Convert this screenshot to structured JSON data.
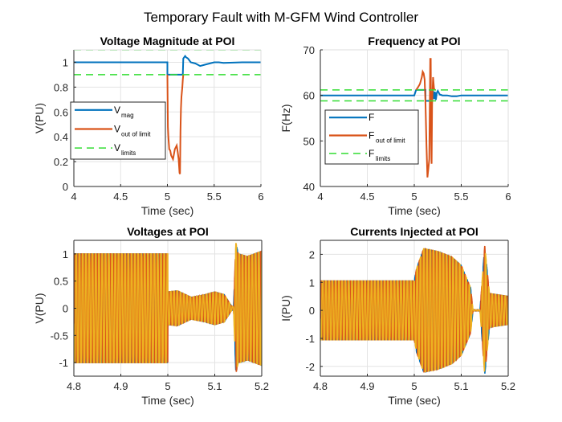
{
  "figure": {
    "title": "Temporary Fault with M-GFM Wind Controller",
    "colors": {
      "blue": "#0072BD",
      "orange": "#D95319",
      "yellow": "#EDB120",
      "green": "#33DD33",
      "grid": "#E3E3E3",
      "axis": "#262626"
    }
  },
  "chart_data": [
    {
      "id": "vmag",
      "type": "line",
      "title": "Voltage Magnitude at POI",
      "xlabel": "Time (sec)",
      "ylabel": "V(PU)",
      "xlim": [
        4,
        6
      ],
      "ylim": [
        0,
        1.1
      ],
      "xticks": [
        4,
        4.5,
        5,
        5.5,
        6
      ],
      "xtick_labels": [
        "4",
        "4.5",
        "5",
        "5.5",
        "6"
      ],
      "yticks": [
        0,
        0.2,
        0.4,
        0.6,
        0.8,
        1
      ],
      "ytick_labels": [
        "0",
        "0.2",
        "0.4",
        "0.6",
        "0.8",
        "1"
      ],
      "grid": true,
      "legend_position": "middle-left",
      "legend": [
        {
          "main": "V",
          "sub": "mag",
          "style": "solid",
          "color": "blue"
        },
        {
          "main": "V",
          "sub": "out of limit",
          "style": "solid",
          "color": "orange"
        },
        {
          "main": "V",
          "sub": "limits",
          "style": "dashed",
          "color": "green"
        }
      ],
      "series": [
        {
          "name": "V_mag",
          "color": "blue",
          "style": "solid",
          "x": [
            4,
            5.0,
            5.0,
            5.16,
            5.165,
            5.17,
            5.19,
            5.2,
            5.22,
            5.25,
            5.3,
            5.35,
            5.4,
            5.45,
            5.5,
            5.55,
            5.6,
            5.8,
            6.0
          ],
          "y": [
            1.0,
            1.0,
            0.9,
            0.9,
            0.9,
            1.03,
            1.05,
            1.04,
            1.03,
            1.0,
            0.99,
            0.97,
            0.98,
            0.99,
            1.0,
            1.0,
            0.995,
            1.0,
            1.0
          ]
        },
        {
          "name": "V_out_of_limit",
          "color": "orange",
          "style": "solid",
          "x": [
            5.0,
            5.005,
            5.01,
            5.02,
            5.03,
            5.04,
            5.06,
            5.08,
            5.1,
            5.11,
            5.12,
            5.13,
            5.135,
            5.14,
            5.145,
            5.15,
            5.16,
            5.165,
            5.17
          ],
          "y": [
            0.9,
            0.48,
            0.4,
            0.3,
            0.29,
            0.25,
            0.22,
            0.3,
            0.33,
            0.28,
            0.22,
            0.11,
            0.1,
            0.45,
            0.63,
            0.72,
            0.8,
            0.86,
            0.9
          ]
        },
        {
          "name": "V_limit_upper",
          "color": "green",
          "style": "dashed",
          "x": [
            4,
            6
          ],
          "y": [
            1.1,
            1.1
          ]
        },
        {
          "name": "V_limit_lower",
          "color": "green",
          "style": "dashed",
          "x": [
            4,
            6
          ],
          "y": [
            0.9,
            0.9
          ]
        }
      ]
    },
    {
      "id": "freq",
      "type": "line",
      "title": "Frequency at POI",
      "xlabel": "Time (sec)",
      "ylabel": "F(Hz)",
      "xlim": [
        4,
        6
      ],
      "ylim": [
        40,
        70
      ],
      "xticks": [
        4,
        4.5,
        5,
        5.5,
        6
      ],
      "xtick_labels": [
        "4",
        "4.5",
        "5",
        "5.5",
        "6"
      ],
      "yticks": [
        40,
        50,
        60,
        70
      ],
      "ytick_labels": [
        "40",
        "50",
        "60",
        "70"
      ],
      "grid": true,
      "legend_position": "middle-left",
      "legend": [
        {
          "main": "F",
          "sub": "",
          "style": "solid",
          "color": "blue"
        },
        {
          "main": "F",
          "sub": "out of limit",
          "style": "solid",
          "color": "orange"
        },
        {
          "main": "F",
          "sub": "limits",
          "style": "dashed",
          "color": "green"
        }
      ],
      "series": [
        {
          "name": "F",
          "color": "blue",
          "style": "solid",
          "x": [
            4,
            5.0,
            5.02,
            5.02,
            5.12,
            5.12,
            5.17,
            5.18,
            5.2,
            5.21,
            5.22,
            5.23,
            5.24,
            5.25,
            5.27,
            5.3,
            5.35,
            5.4,
            5.45,
            5.5,
            6.0
          ],
          "y": [
            60,
            60,
            61.2,
            61.2,
            61.2,
            58.8,
            58.8,
            59.6,
            61.0,
            59.2,
            60.8,
            59.0,
            60.6,
            61.0,
            60.2,
            60.0,
            60.0,
            59.8,
            59.8,
            60.0,
            60.0
          ]
        },
        {
          "name": "F_out_of_limit",
          "color": "orange",
          "style": "solid",
          "x": [
            5.02,
            5.04,
            5.06,
            5.08,
            5.09,
            5.1,
            5.11,
            5.12,
            5.13,
            5.14,
            5.15,
            5.16,
            5.17,
            5.175,
            5.18,
            5.185,
            5.19,
            5.2,
            5.21,
            5.22
          ],
          "y": [
            61.2,
            61.8,
            62.5,
            64.0,
            65.2,
            64.8,
            63.5,
            58.0,
            49.0,
            42.0,
            44.0,
            46.0,
            68.0,
            68.0,
            50.0,
            45.0,
            58.0,
            64.0,
            61.5,
            61.2
          ]
        },
        {
          "name": "F_limit_upper",
          "color": "green",
          "style": "dashed",
          "x": [
            4,
            6
          ],
          "y": [
            61.2,
            61.2
          ]
        },
        {
          "name": "F_limit_lower",
          "color": "green",
          "style": "dashed",
          "x": [
            4,
            6
          ],
          "y": [
            58.8,
            58.8
          ]
        }
      ]
    },
    {
      "id": "voltages",
      "type": "line",
      "title": "Voltages at POI",
      "xlabel": "Time (sec)",
      "ylabel": "V(PU)",
      "xlim": [
        4.8,
        5.2
      ],
      "ylim": [
        -1.25,
        1.25
      ],
      "xticks": [
        4.8,
        4.9,
        5.0,
        5.1,
        5.2
      ],
      "xtick_labels": [
        "4.8",
        "4.9",
        "5",
        "5.1",
        "5.2"
      ],
      "yticks": [
        -1,
        -0.5,
        0,
        0.5,
        1
      ],
      "ytick_labels": [
        "-1",
        "-0.5",
        "0",
        "0.5",
        "1"
      ],
      "grid": true,
      "legend_position": "none",
      "waveform": {
        "frequency_hz": 60,
        "phases": [
          "Va",
          "Vb",
          "Vc"
        ],
        "phase_colors": [
          "blue",
          "orange",
          "yellow"
        ],
        "phase_shift_deg": [
          0,
          -120,
          120
        ],
        "envelope": {
          "t": [
            4.8,
            5.0,
            5.0,
            5.02,
            5.05,
            5.08,
            5.1,
            5.12,
            5.135,
            5.14,
            5.145,
            5.15,
            5.17,
            5.2
          ],
          "amp": [
            1.0,
            1.0,
            0.3,
            0.32,
            0.2,
            0.25,
            0.3,
            0.25,
            0.05,
            0.02,
            1.2,
            1.0,
            0.95,
            1.05
          ]
        }
      }
    },
    {
      "id": "currents",
      "type": "line",
      "title": "Currents Injected at POI",
      "xlabel": "Time (sec)",
      "ylabel": "I(PU)",
      "xlim": [
        4.8,
        5.2
      ],
      "ylim": [
        -2.35,
        2.5
      ],
      "xticks": [
        4.8,
        4.9,
        5.0,
        5.1,
        5.2
      ],
      "xtick_labels": [
        "4.8",
        "4.9",
        "5",
        "5.1",
        "5.2"
      ],
      "yticks": [
        -2,
        -1,
        0,
        1,
        2
      ],
      "ytick_labels": [
        "-2",
        "-1",
        "0",
        "1",
        "2"
      ],
      "grid": true,
      "legend_position": "none",
      "waveform": {
        "frequency_hz": 60,
        "phases": [
          "Ia",
          "Ib",
          "Ic"
        ],
        "phase_colors": [
          "blue",
          "orange",
          "yellow"
        ],
        "phase_shift_deg": [
          0,
          -120,
          120
        ],
        "envelope": {
          "t": [
            4.8,
            5.0,
            5.005,
            5.02,
            5.05,
            5.08,
            5.1,
            5.12,
            5.125,
            5.14,
            5.15,
            5.16,
            5.2
          ],
          "amp": [
            1.05,
            1.05,
            1.5,
            2.2,
            2.1,
            1.9,
            1.6,
            0.8,
            0.02,
            0.02,
            2.3,
            0.6,
            0.5
          ]
        }
      }
    }
  ]
}
